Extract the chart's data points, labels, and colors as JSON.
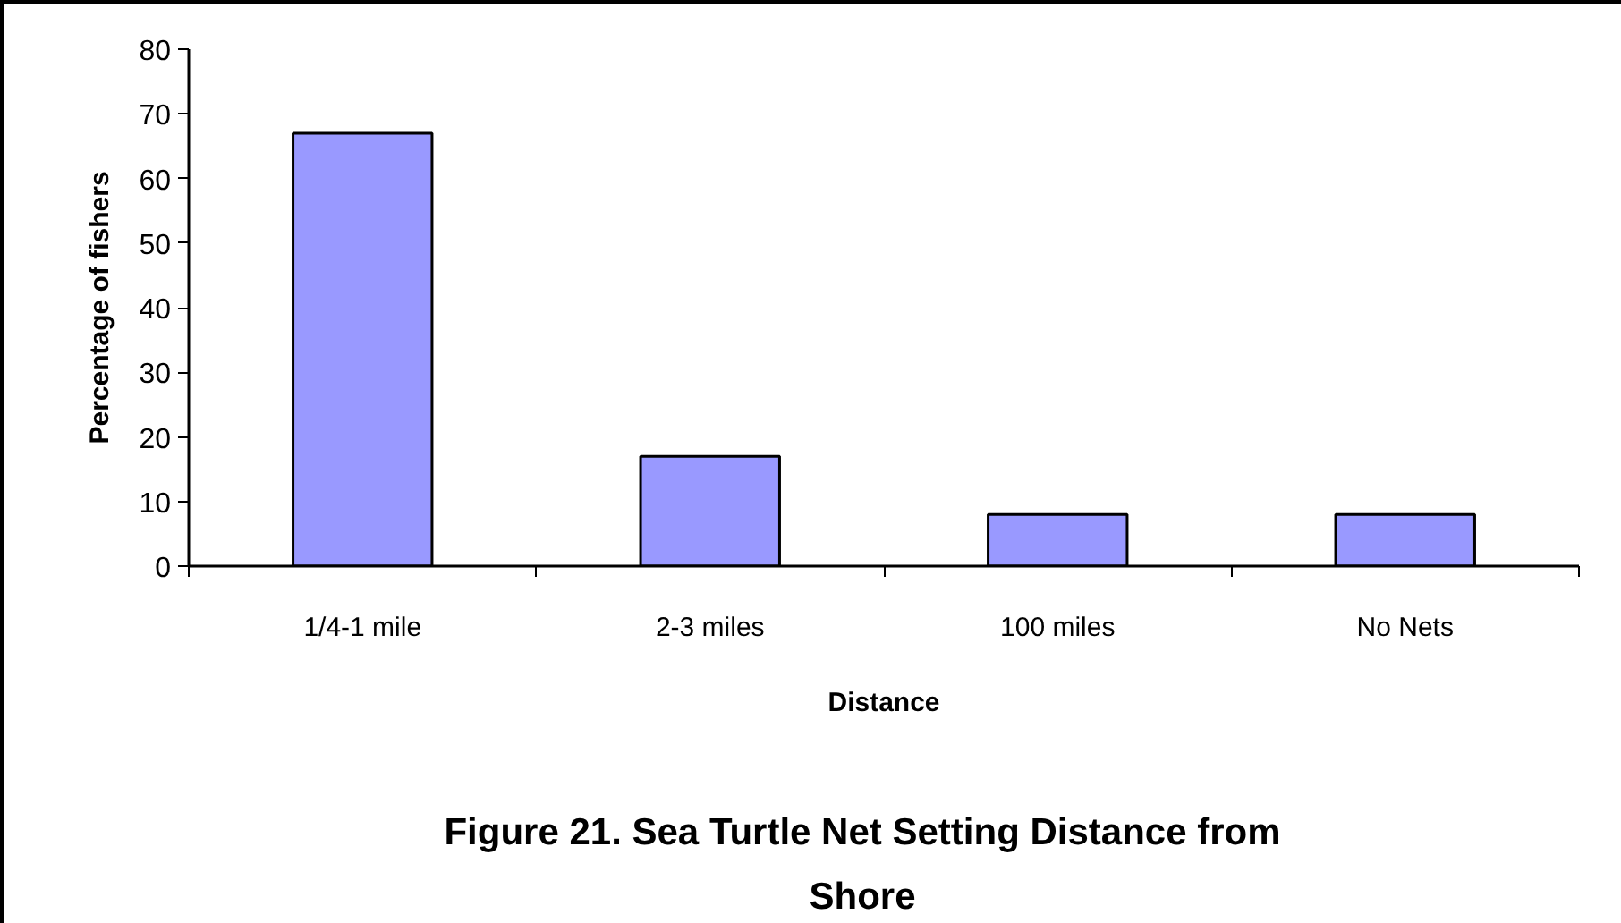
{
  "chart_data": {
    "type": "bar",
    "title": "Figure 21. Sea Turtle Net Setting Distance from Shore",
    "xlabel": "Distance",
    "ylabel": "Percentage of fishers",
    "categories": [
      "1/4-1 mile",
      "2-3 miles",
      "100 miles",
      "No Nets"
    ],
    "values": [
      67,
      17,
      8,
      8
    ],
    "color": "#9999ff",
    "ylim": [
      0,
      80
    ],
    "yticks": [
      0,
      10,
      20,
      30,
      40,
      50,
      60,
      70,
      80
    ]
  }
}
